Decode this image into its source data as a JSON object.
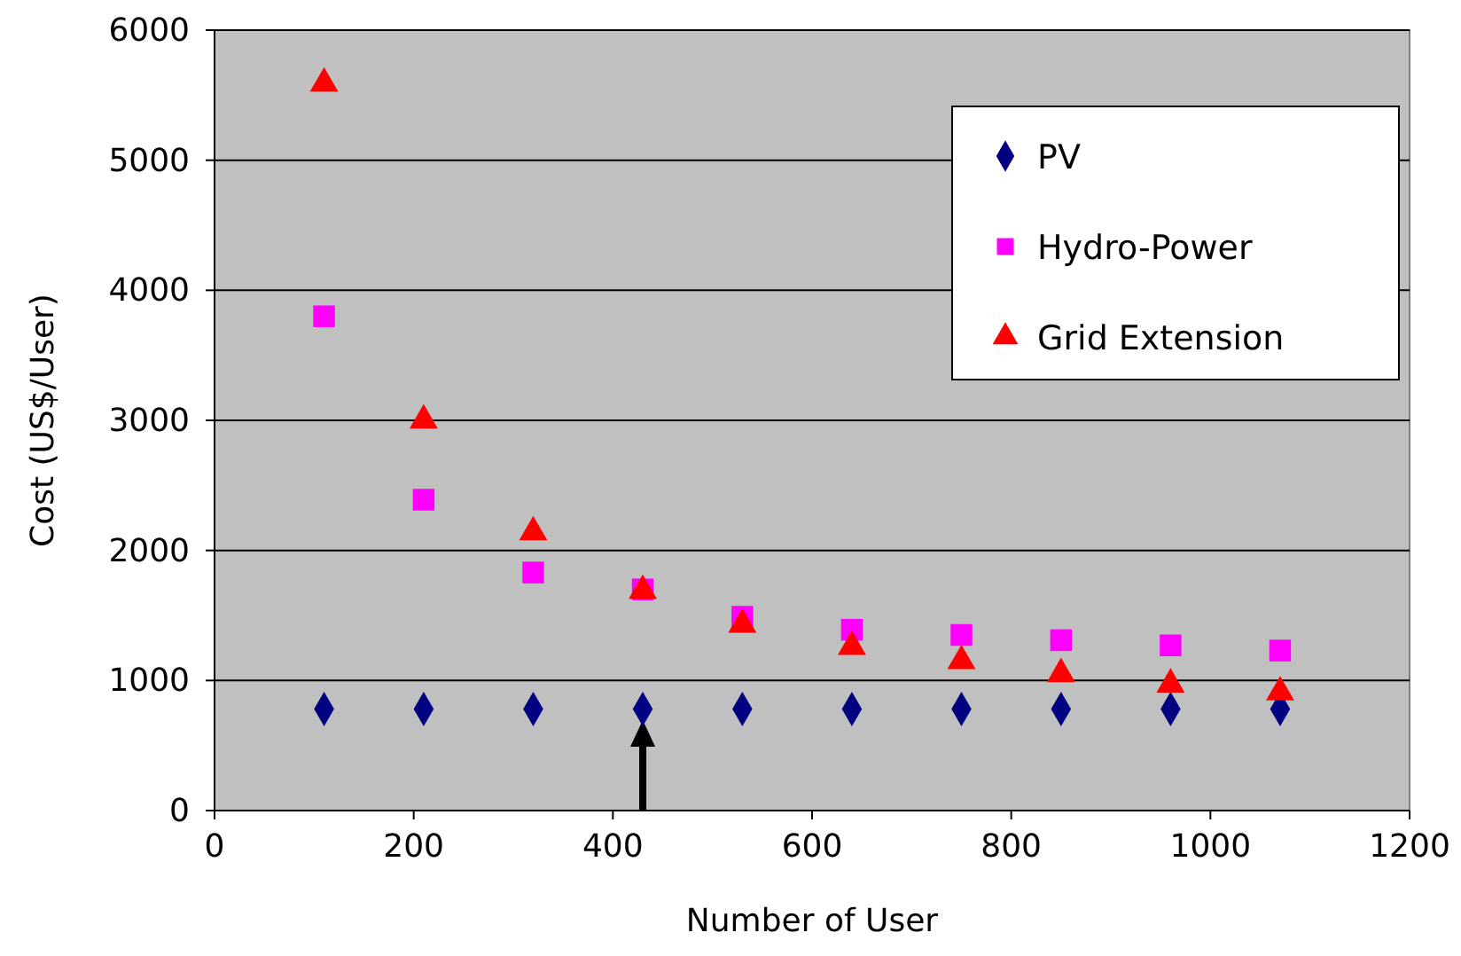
{
  "chart_data": {
    "type": "scatter",
    "xlabel": "Number of User",
    "ylabel": "Cost (US$/User)",
    "xlim": [
      0,
      1200
    ],
    "xticks": [
      0,
      200,
      400,
      600,
      800,
      1000,
      1200
    ],
    "ylim": [
      0,
      6000
    ],
    "yticks": [
      0,
      1000,
      2000,
      3000,
      4000,
      5000,
      6000
    ],
    "grid": "y",
    "legend": "top right",
    "x": [
      110,
      210,
      320,
      430,
      530,
      640,
      750,
      850,
      960,
      1070
    ],
    "series": [
      {
        "name": "PV",
        "color": "#000080",
        "marker": "diamond",
        "values": [
          780,
          780,
          780,
          780,
          780,
          780,
          780,
          780,
          780,
          780
        ]
      },
      {
        "name": "Hydro-Power",
        "color": "#ff00ff",
        "marker": "square",
        "values": [
          3800,
          2390,
          1830,
          1700,
          1490,
          1390,
          1350,
          1310,
          1270,
          1230
        ]
      },
      {
        "name": "Grid Extension",
        "color": "#ff0000",
        "marker": "triangle",
        "values": [
          5590,
          3000,
          2140,
          1690,
          1430,
          1260,
          1150,
          1050,
          970,
          910
        ]
      }
    ]
  }
}
